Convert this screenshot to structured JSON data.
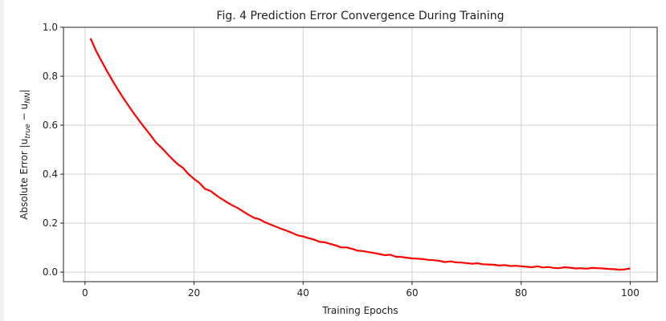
{
  "chart_data": {
    "type": "line",
    "title": "Fig. 4 Prediction Error Convergence During Training",
    "xlabel": "Training Epochs",
    "ylabel_prefix": "Absolute Error |u",
    "ylabel_sub1": "true",
    "ylabel_mid": " − u",
    "ylabel_sub2": "NN",
    "ylabel_suffix": "|",
    "xlim": [
      -3.95,
      104.95
    ],
    "ylim": [
      -0.039,
      1.0
    ],
    "xticks": [
      0,
      20,
      40,
      60,
      80,
      100
    ],
    "yticks": [
      0.0,
      0.2,
      0.4,
      0.6,
      0.8,
      1.0
    ],
    "ytick_labels": [
      "0.0",
      "0.2",
      "0.4",
      "0.6",
      "0.8",
      "1.0"
    ],
    "grid": true,
    "series": [
      {
        "name": "error",
        "color": "#ff0000",
        "x_start": 1,
        "values": [
          0.955,
          0.905,
          0.863,
          0.823,
          0.784,
          0.747,
          0.712,
          0.679,
          0.647,
          0.617,
          0.588,
          0.56,
          0.53,
          0.509,
          0.485,
          0.462,
          0.441,
          0.425,
          0.4,
          0.381,
          0.364,
          0.34,
          0.332,
          0.315,
          0.3,
          0.286,
          0.273,
          0.262,
          0.248,
          0.234,
          0.222,
          0.216,
          0.204,
          0.195,
          0.186,
          0.177,
          0.169,
          0.16,
          0.15,
          0.146,
          0.139,
          0.133,
          0.124,
          0.122,
          0.115,
          0.109,
          0.101,
          0.101,
          0.095,
          0.088,
          0.086,
          0.082,
          0.078,
          0.074,
          0.069,
          0.071,
          0.063,
          0.062,
          0.059,
          0.056,
          0.055,
          0.053,
          0.05,
          0.049,
          0.046,
          0.041,
          0.044,
          0.04,
          0.039,
          0.037,
          0.034,
          0.036,
          0.032,
          0.031,
          0.03,
          0.027,
          0.029,
          0.025,
          0.026,
          0.024,
          0.022,
          0.02,
          0.024,
          0.019,
          0.021,
          0.017,
          0.016,
          0.02,
          0.018,
          0.015,
          0.016,
          0.014,
          0.017,
          0.016,
          0.015,
          0.013,
          0.012,
          0.01,
          0.011,
          0.015
        ]
      }
    ]
  }
}
